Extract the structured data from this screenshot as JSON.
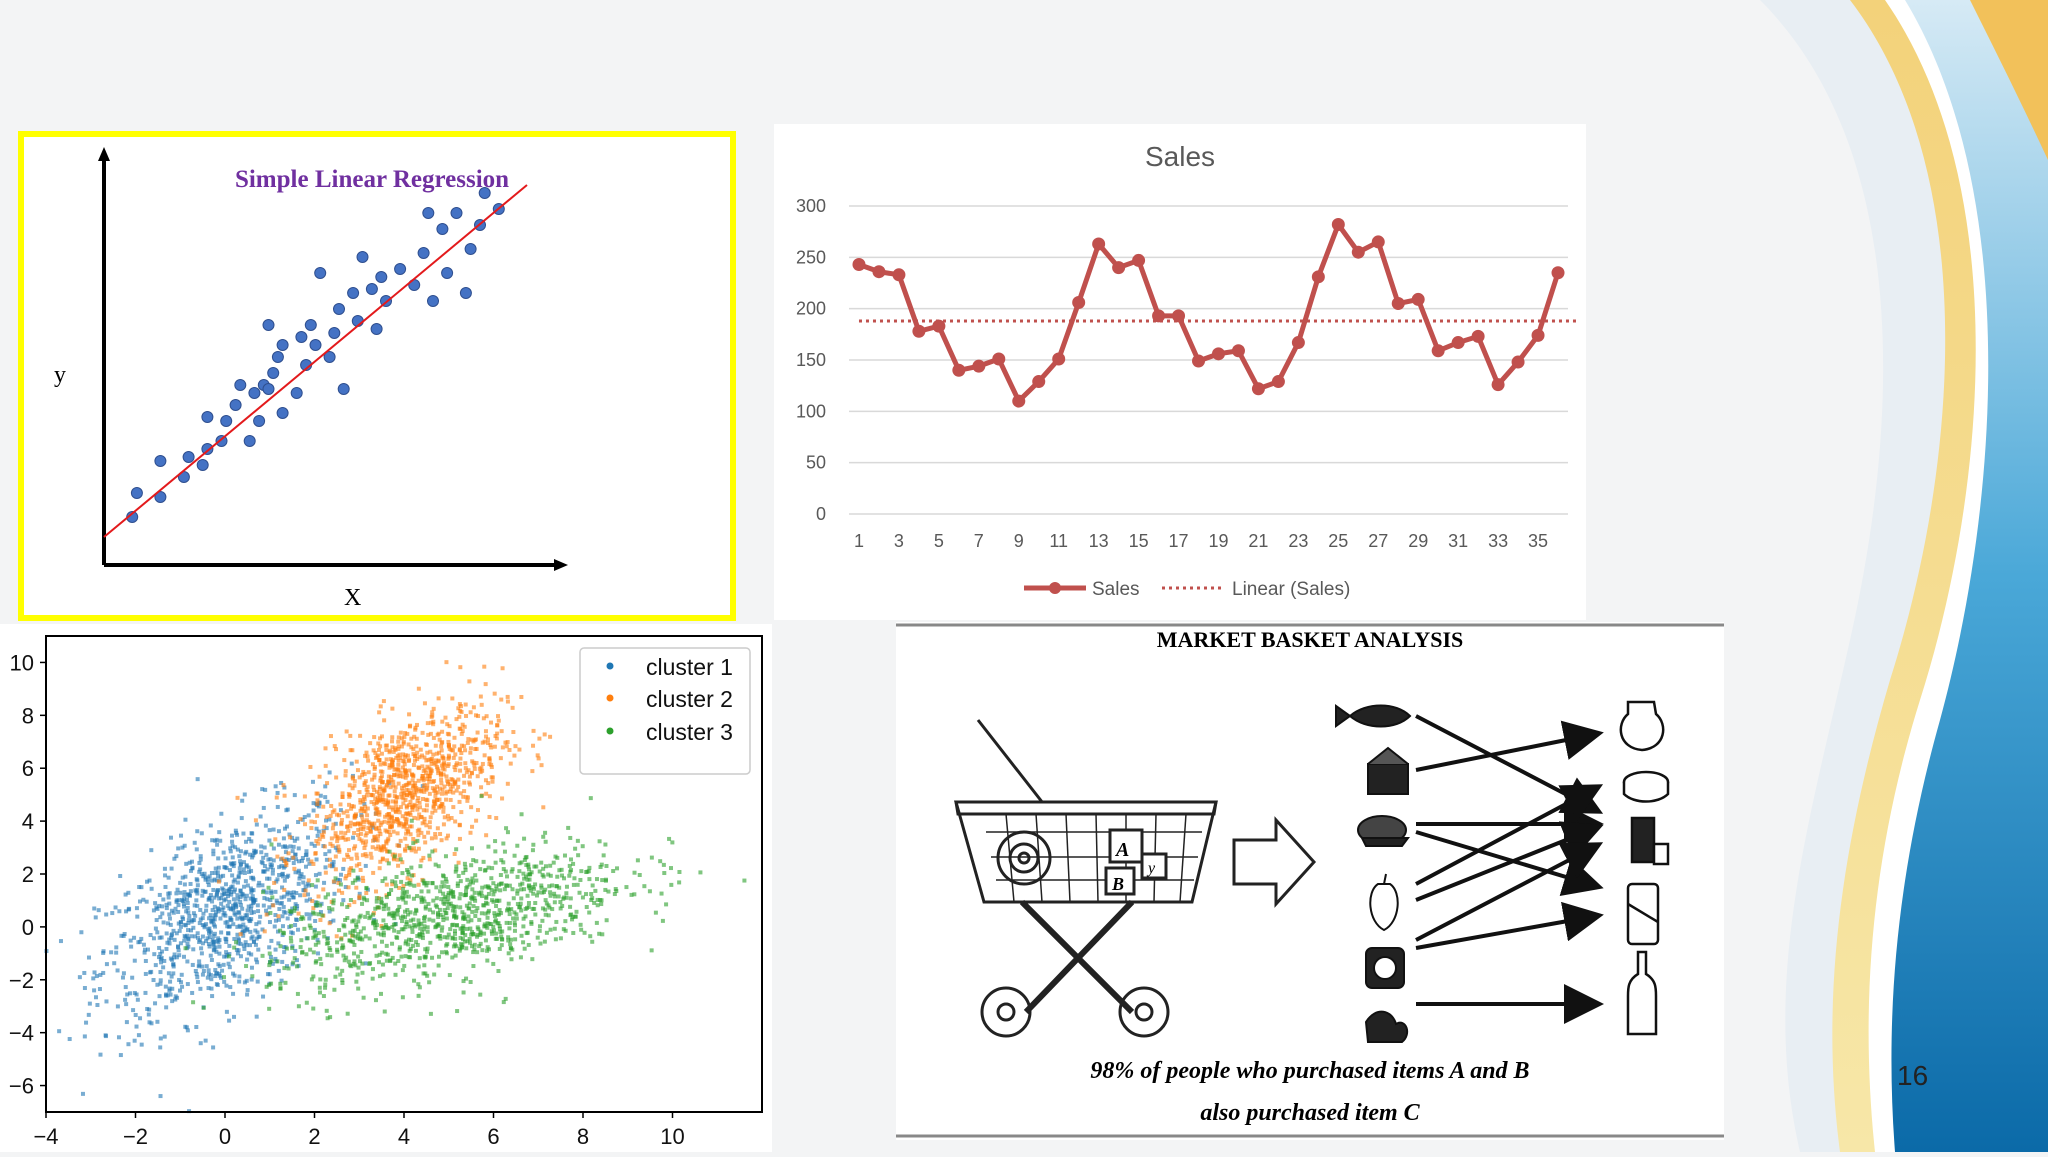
{
  "slide": {
    "page_number": "16"
  },
  "colors": {
    "background": "#f3f4f5",
    "highlight_border": "#ffff00",
    "sales_line": "#c0504d",
    "cluster1": "#1f77b4",
    "cluster2": "#ff7f0e",
    "cluster3": "#2ca02c"
  },
  "chart_data": [
    {
      "type": "scatter",
      "title": "Simple Linear Regression",
      "xlabel": "X",
      "ylabel": "y",
      "series": [
        {
          "values": [
            [
              0.06,
              0.12
            ],
            [
              0.07,
              0.18
            ],
            [
              0.12,
              0.17
            ],
            [
              0.12,
              0.26
            ],
            [
              0.17,
              0.22
            ],
            [
              0.18,
              0.27
            ],
            [
              0.21,
              0.25
            ],
            [
              0.22,
              0.29
            ],
            [
              0.22,
              0.37
            ],
            [
              0.25,
              0.31
            ],
            [
              0.26,
              0.36
            ],
            [
              0.28,
              0.4
            ],
            [
              0.29,
              0.45
            ],
            [
              0.31,
              0.31
            ],
            [
              0.32,
              0.43
            ],
            [
              0.33,
              0.36
            ],
            [
              0.34,
              0.45
            ],
            [
              0.35,
              0.6
            ],
            [
              0.35,
              0.44
            ],
            [
              0.36,
              0.48
            ],
            [
              0.37,
              0.52
            ],
            [
              0.38,
              0.55
            ],
            [
              0.38,
              0.38
            ],
            [
              0.41,
              0.43
            ],
            [
              0.42,
              0.57
            ],
            [
              0.43,
              0.5
            ],
            [
              0.44,
              0.6
            ],
            [
              0.45,
              0.55
            ],
            [
              0.46,
              0.73
            ],
            [
              0.48,
              0.52
            ],
            [
              0.49,
              0.58
            ],
            [
              0.5,
              0.64
            ],
            [
              0.51,
              0.44
            ],
            [
              0.53,
              0.68
            ],
            [
              0.54,
              0.61
            ],
            [
              0.55,
              0.77
            ],
            [
              0.57,
              0.69
            ],
            [
              0.58,
              0.59
            ],
            [
              0.59,
              0.72
            ],
            [
              0.6,
              0.66
            ],
            [
              0.63,
              0.74
            ],
            [
              0.66,
              0.7
            ],
            [
              0.68,
              0.78
            ],
            [
              0.69,
              0.88
            ],
            [
              0.7,
              0.66
            ],
            [
              0.72,
              0.84
            ],
            [
              0.73,
              0.73
            ],
            [
              0.75,
              0.88
            ],
            [
              0.77,
              0.68
            ],
            [
              0.78,
              0.79
            ],
            [
              0.8,
              0.85
            ],
            [
              0.81,
              0.93
            ],
            [
              0.84,
              0.89
            ]
          ]
        }
      ],
      "fit_line": [
        [
          0.0,
          0.07
        ],
        [
          0.9,
          0.95
        ]
      ],
      "grid": false
    },
    {
      "type": "line",
      "title": "Sales",
      "x": [
        1,
        2,
        3,
        4,
        5,
        6,
        7,
        8,
        9,
        10,
        11,
        12,
        13,
        14,
        15,
        16,
        17,
        18,
        19,
        20,
        21,
        22,
        23,
        24,
        25,
        26,
        27,
        28,
        29,
        30,
        31,
        32,
        33,
        34,
        35,
        36
      ],
      "x_ticks": [
        "1",
        "3",
        "5",
        "7",
        "9",
        "11",
        "13",
        "15",
        "17",
        "19",
        "21",
        "23",
        "25",
        "27",
        "29",
        "31",
        "33",
        "35"
      ],
      "ylim": [
        0,
        300
      ],
      "y_ticks": [
        "0",
        "50",
        "100",
        "150",
        "200",
        "250",
        "300"
      ],
      "series": [
        {
          "name": "Sales",
          "values": [
            243,
            236,
            233,
            178,
            183,
            140,
            144,
            151,
            110,
            129,
            151,
            206,
            263,
            240,
            247,
            193,
            193,
            149,
            156,
            159,
            122,
            129,
            167,
            231,
            282,
            255,
            265,
            205,
            209,
            159,
            167,
            173,
            126,
            148,
            174,
            235
          ]
        },
        {
          "name": "Linear (Sales)",
          "values": [
            188,
            188,
            188,
            188,
            188,
            188,
            188,
            188,
            188,
            188,
            188,
            188,
            188,
            188,
            188,
            188,
            188,
            188,
            188,
            188,
            188,
            188,
            188,
            188,
            188,
            188,
            188,
            188,
            188,
            188,
            188,
            188,
            188,
            188,
            188,
            188
          ],
          "style": "dotted"
        }
      ],
      "legend": "bottom",
      "grid": true
    },
    {
      "type": "scatter",
      "xlim": [
        -4,
        12
      ],
      "ylim": [
        -7,
        11
      ],
      "x_ticks": [
        "−4",
        "−2",
        "0",
        "2",
        "4",
        "6",
        "8",
        "10"
      ],
      "y_ticks": [
        "−6",
        "−4",
        "−2",
        "0",
        "2",
        "4",
        "6",
        "8",
        "10"
      ],
      "legend": "top-right",
      "series": [
        {
          "name": "cluster 1",
          "center": [
            0,
            0.5
          ],
          "spread": [
            1.4,
            2.0
          ],
          "count": 1000
        },
        {
          "name": "cluster 2",
          "center": [
            4,
            5
          ],
          "spread": [
            1.1,
            1.7
          ],
          "count": 1000
        },
        {
          "name": "cluster 3",
          "center": [
            5,
            0.4
          ],
          "spread": [
            2.0,
            1.4
          ],
          "count": 1000
        }
      ]
    }
  ],
  "market_basket": {
    "title": "MARKET BASKET ANALYSIS",
    "caption_line1": "98% of people who purchased items A and B",
    "caption_line2": "also purchased item C",
    "basket_labels": [
      "A",
      "B",
      "y"
    ],
    "left_items": [
      "fish-icon",
      "cake-icon",
      "chicken-icon",
      "pepper-icon",
      "soap-icon",
      "vegetable-icon"
    ],
    "right_items": [
      "jug-icon",
      "cheese-icon",
      "jar-icon",
      "can-icon",
      "bottle-icon"
    ]
  }
}
